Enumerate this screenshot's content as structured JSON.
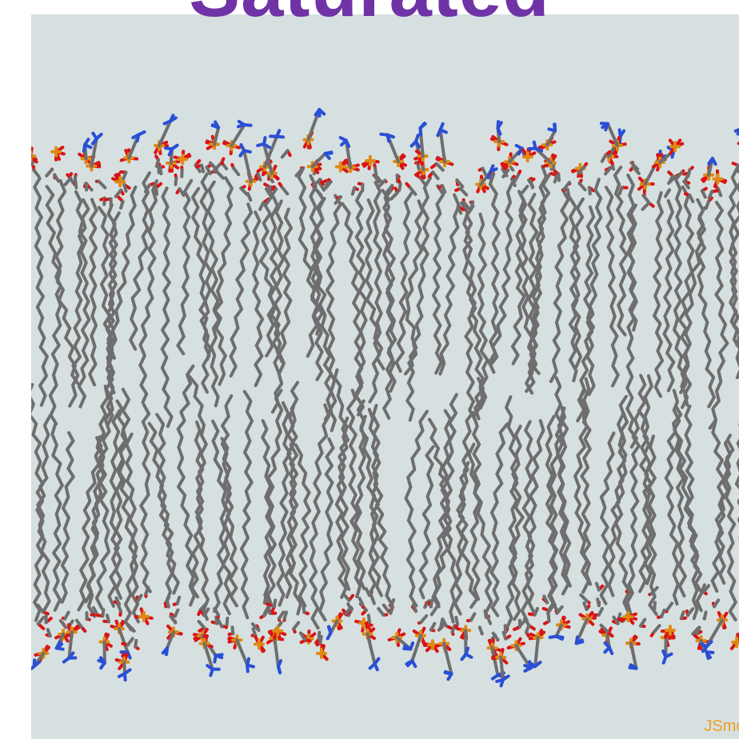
{
  "title": "Saturated",
  "viewer": {
    "watermark": "JSmol",
    "background_color": "#d6e0e0",
    "colors": {
      "carbon": "#6e6e6e",
      "oxygen": "#d91414",
      "phosphorus": "#e08a12",
      "nitrogen": "#2a4fd6"
    }
  }
}
